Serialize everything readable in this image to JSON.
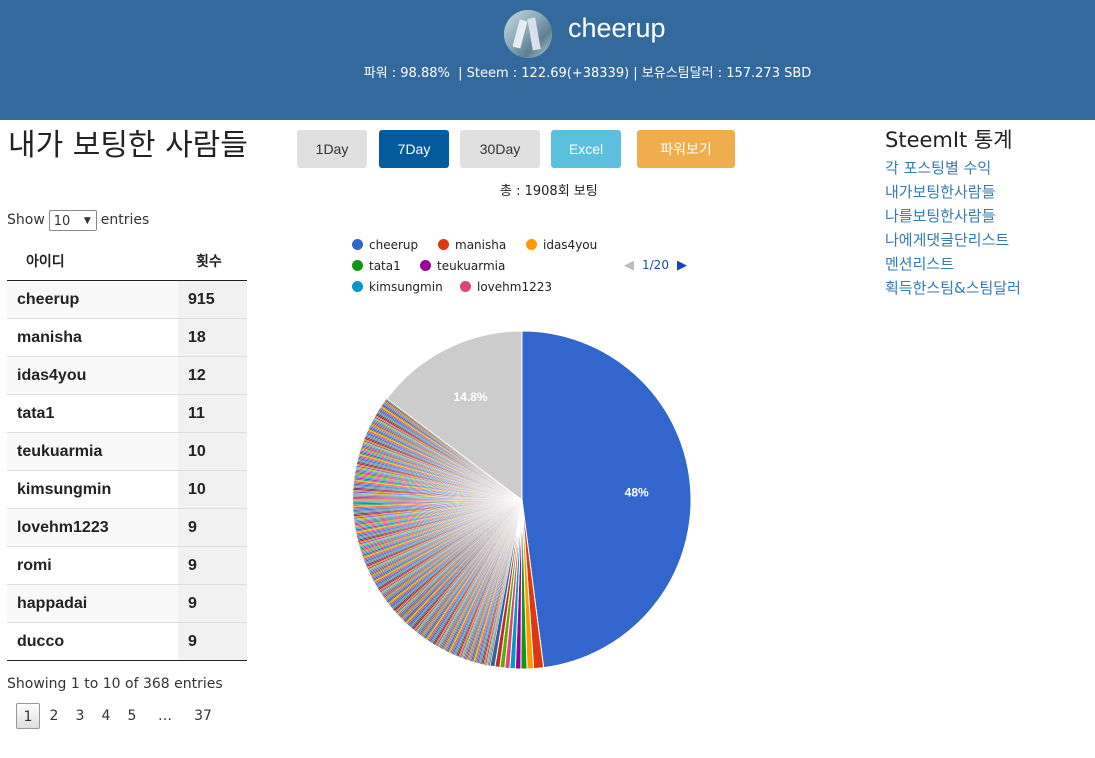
{
  "header": {
    "username": "cheerup",
    "stats": "파워 : 98.88%  | Steem : 122.69(+38339) | 보유스팀달러 : 157.273 SBD"
  },
  "page_title": "내가 보팅한 사람들",
  "buttons": {
    "day1": "1Day",
    "day7": "7Day",
    "day30": "30Day",
    "excel": "Excel",
    "power": "파워보기"
  },
  "total": "총 : 1908회 보팅",
  "length_menu": {
    "show": "Show",
    "value": "10",
    "entries": "entries"
  },
  "table": {
    "headers": [
      "아이디",
      "횟수"
    ],
    "rows": [
      {
        "id": "cheerup",
        "count": "915"
      },
      {
        "id": "manisha",
        "count": "18"
      },
      {
        "id": "idas4you",
        "count": "12"
      },
      {
        "id": "tata1",
        "count": "11"
      },
      {
        "id": "teukuarmia",
        "count": "10"
      },
      {
        "id": "kimsungmin",
        "count": "10"
      },
      {
        "id": "lovehm1223",
        "count": "9"
      },
      {
        "id": "romi",
        "count": "9"
      },
      {
        "id": "happadai",
        "count": "9"
      },
      {
        "id": "ducco",
        "count": "9"
      }
    ]
  },
  "info": "Showing 1 to 10 of 368 entries",
  "pagination": [
    "1",
    "2",
    "3",
    "4",
    "5",
    "…",
    "37"
  ],
  "sidebar": {
    "title": "SteemIt 통계",
    "links": [
      "각 포스팅별 수익",
      "내가보팅한사람들",
      "나를보팅한사람들",
      "나에게댓글단리스트",
      "멘션리스트",
      "획득한스팀&스팀달러"
    ]
  },
  "legend": {
    "items": [
      {
        "name": "cheerup",
        "color": "#3366cc"
      },
      {
        "name": "manisha",
        "color": "#dc3912"
      },
      {
        "name": "idas4you",
        "color": "#ff9900"
      },
      {
        "name": "tata1",
        "color": "#109618"
      },
      {
        "name": "teukuarmia",
        "color": "#990099"
      },
      {
        "name": "kimsungmin",
        "color": "#0099c6"
      },
      {
        "name": "lovehm1223",
        "color": "#dd4477"
      }
    ],
    "page": "1/20"
  },
  "chart_data": {
    "type": "pie",
    "total": 1908,
    "slices": [
      {
        "name": "cheerup",
        "value": 915,
        "label": "48%",
        "color": "#3366cc"
      },
      {
        "name": "manisha",
        "value": 18,
        "color": "#dc3912"
      },
      {
        "name": "idas4you",
        "value": 12,
        "color": "#ff9900"
      },
      {
        "name": "tata1",
        "value": 11,
        "color": "#109618"
      },
      {
        "name": "teukuarmia",
        "value": 10,
        "color": "#990099"
      },
      {
        "name": "kimsungmin",
        "value": 10,
        "color": "#0099c6"
      },
      {
        "name": "lovehm1223",
        "value": 9,
        "color": "#dd4477"
      },
      {
        "name": "romi",
        "value": 9,
        "color": "#66aa00"
      },
      {
        "name": "happadai",
        "value": 9,
        "color": "#b82e2e"
      },
      {
        "name": "ducco",
        "value": 9,
        "color": "#316395"
      }
    ],
    "other": {
      "value": 282,
      "label": "14.8%",
      "color": "#cccccc"
    },
    "palette": [
      "#3366cc",
      "#dc3912",
      "#ff9900",
      "#109618",
      "#990099",
      "#0099c6",
      "#dd4477",
      "#66aa00",
      "#b82e2e",
      "#316395",
      "#994499",
      "#22aa99",
      "#aaaa11",
      "#6633cc",
      "#e67300",
      "#8b0707",
      "#651067",
      "#329262",
      "#5574a6",
      "#3b3eac"
    ]
  }
}
